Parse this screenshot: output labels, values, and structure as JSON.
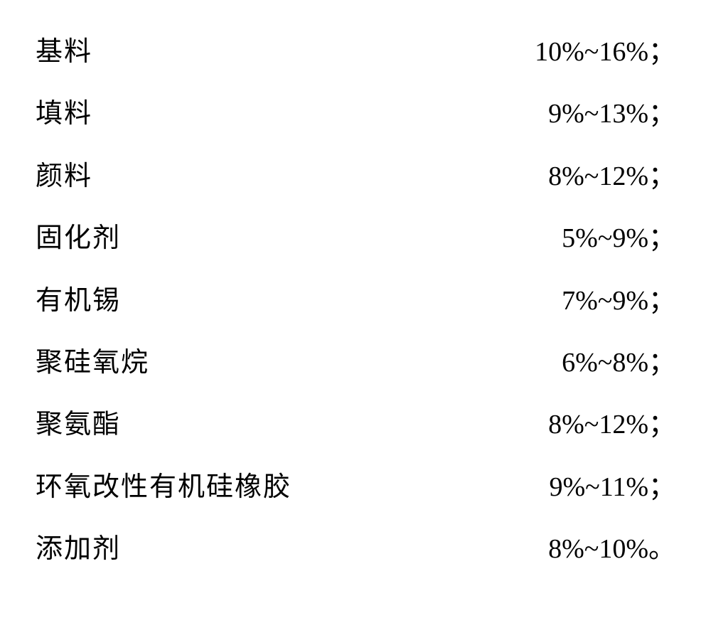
{
  "composition": {
    "items": [
      {
        "name": "基料",
        "value": "10%~16%",
        "punct": "；"
      },
      {
        "name": "填料",
        "value": "9%~13%",
        "punct": "；"
      },
      {
        "name": "颜料",
        "value": "8%~12%",
        "punct": "；"
      },
      {
        "name": "固化剂",
        "value": "5%~9%",
        "punct": "；"
      },
      {
        "name": "有机锡",
        "value": "7%~9%",
        "punct": "；"
      },
      {
        "name": "聚硅氧烷",
        "value": "6%~8%",
        "punct": "；"
      },
      {
        "name": "聚氨酯",
        "value": "8%~12%",
        "punct": "；"
      },
      {
        "name": "环氧改性有机硅橡胶",
        "value": "9%~11%",
        "punct": "；"
      },
      {
        "name": "添加剂",
        "value": "8%~10%",
        "punct": "。"
      }
    ],
    "styling": {
      "name_fontsize": 38,
      "value_fontsize": 38,
      "text_color": "#000000",
      "background_color": "#ffffff",
      "line_height": 2.3,
      "name_font": "KaiTi",
      "value_font": "Times New Roman"
    }
  }
}
